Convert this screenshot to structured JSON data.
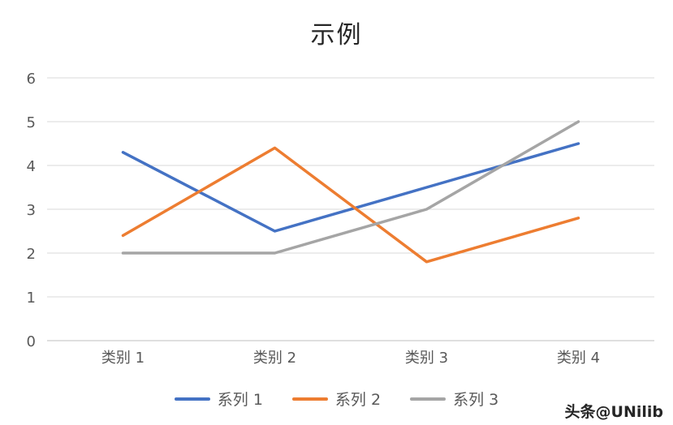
{
  "chart_data": {
    "type": "line",
    "title": "示例",
    "categories": [
      "类别 1",
      "类别 2",
      "类别 3",
      "类别 4"
    ],
    "series": [
      {
        "name": "系列 1",
        "color": "#4472C4",
        "values": [
          4.3,
          2.5,
          3.5,
          4.5
        ]
      },
      {
        "name": "系列 2",
        "color": "#ED7D31",
        "values": [
          2.4,
          4.4,
          1.8,
          2.8
        ]
      },
      {
        "name": "系列 3",
        "color": "#A5A5A5",
        "values": [
          2.0,
          2.0,
          3.0,
          5.0
        ]
      }
    ],
    "ylim": [
      0,
      6
    ],
    "ytick_step": 1,
    "yticks": [
      "0",
      "1",
      "2",
      "3",
      "4",
      "5",
      "6"
    ],
    "grid": true,
    "legend_position": "bottom",
    "grid_color": "#D9D9D9",
    "axis_color": "#BFBFBF",
    "tick_color": "#595959",
    "line_width": 3.5
  },
  "watermark": {
    "text": "头条@UNilib"
  }
}
